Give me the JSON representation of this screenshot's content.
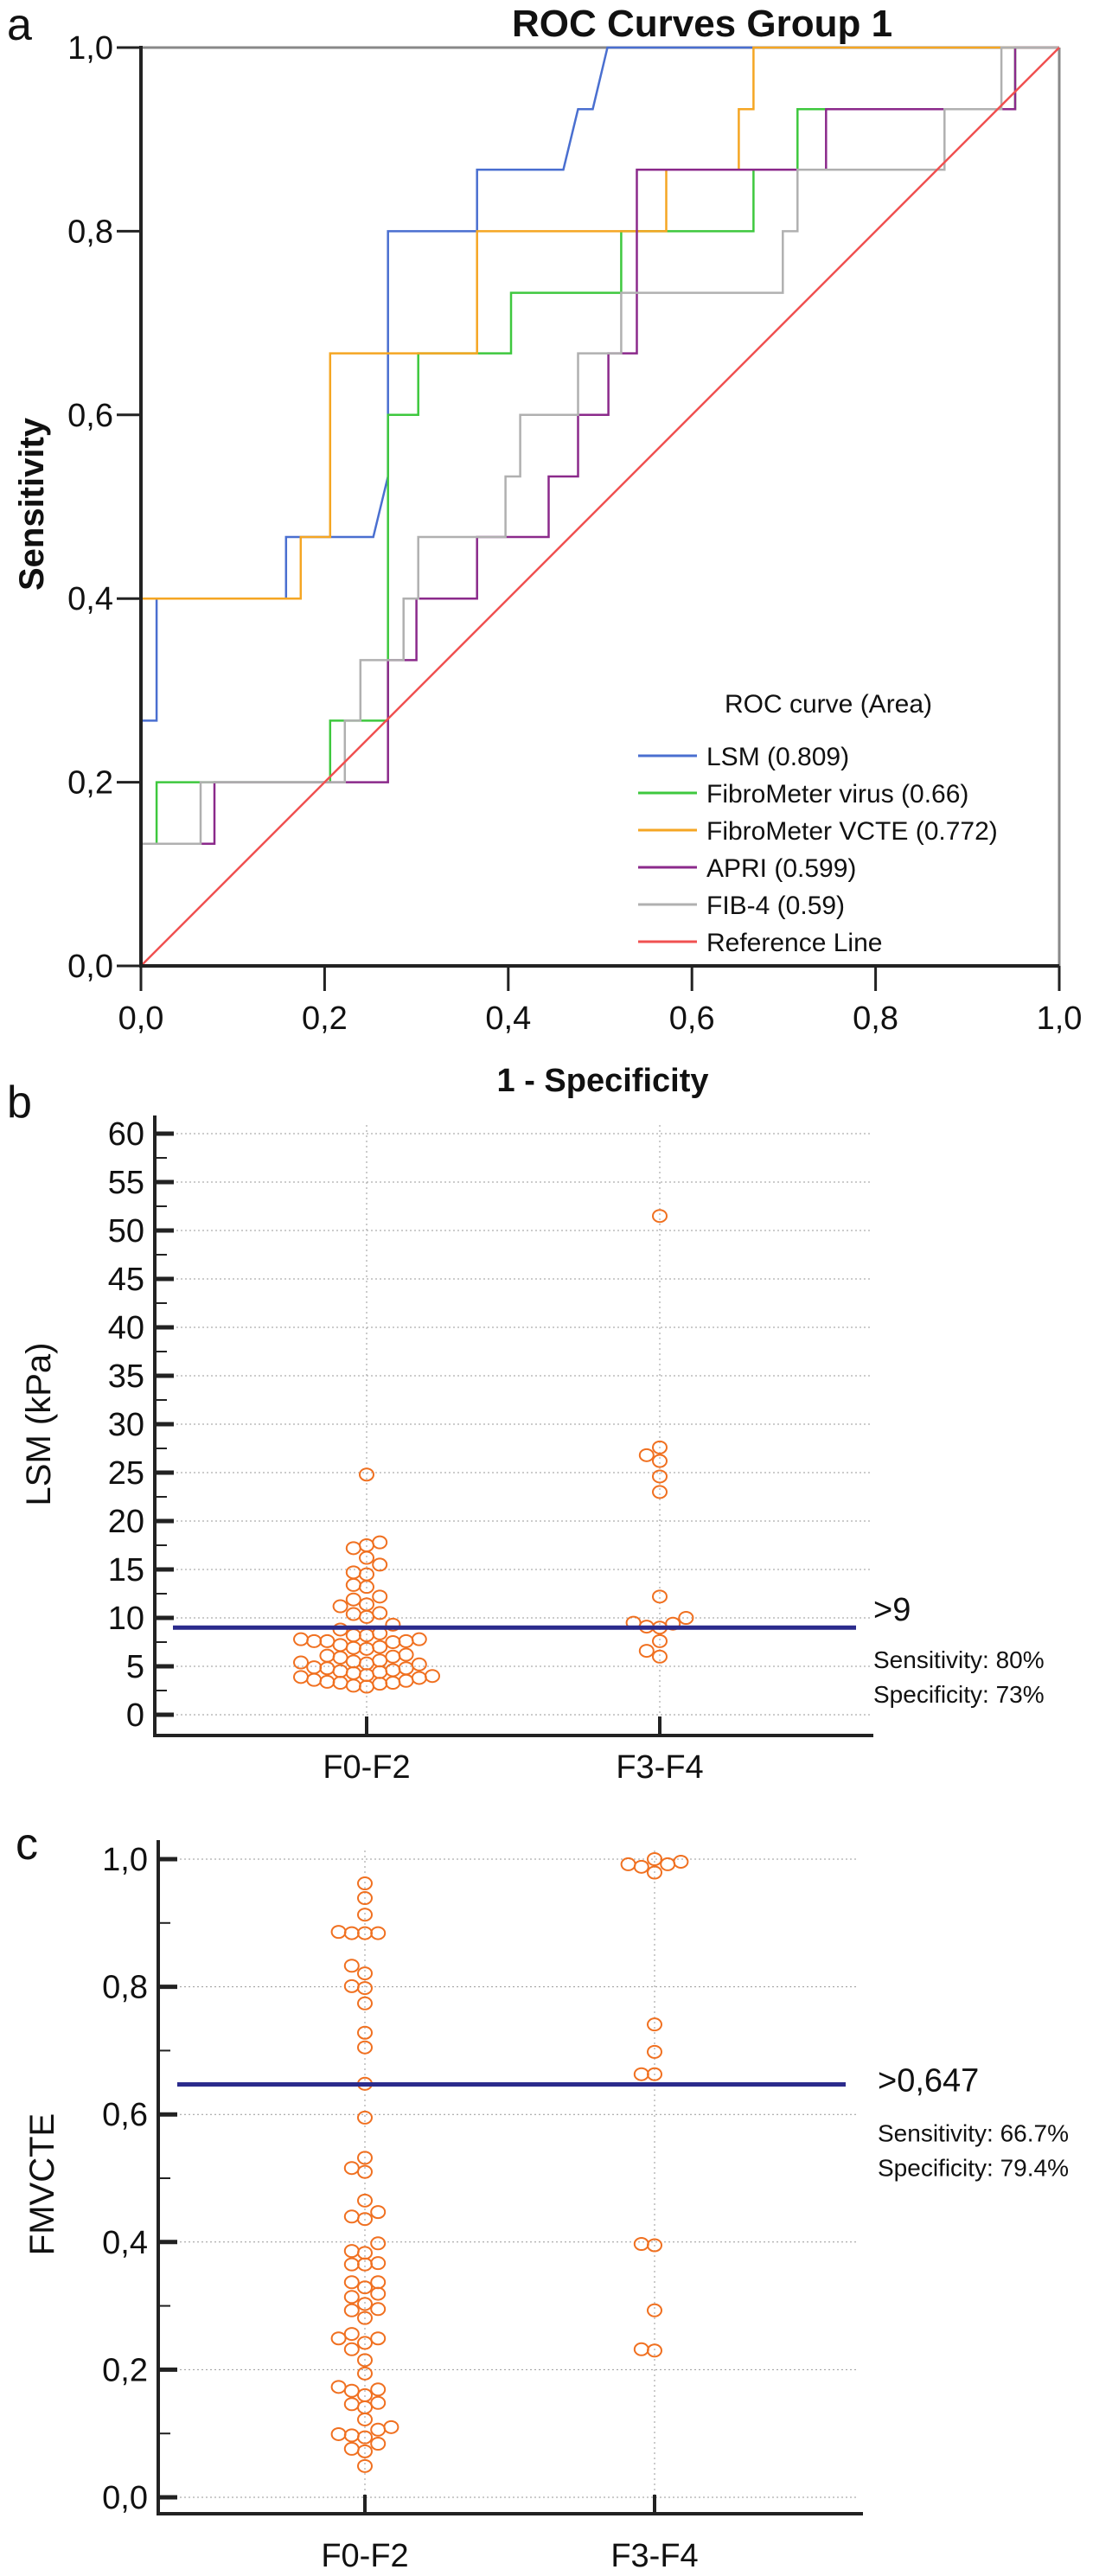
{
  "chart_data": [
    {
      "panel_label": "a",
      "type": "line",
      "title": "ROC Curves Group 1",
      "xlabel": "1 - Specificity",
      "ylabel": "Sensitivity",
      "xlim": [
        0,
        1
      ],
      "ylim": [
        0,
        1
      ],
      "xticks": [
        "0,0",
        "0,2",
        "0,4",
        "0,6",
        "0,8",
        "1,0"
      ],
      "yticks": [
        "0,0",
        "0,2",
        "0,4",
        "0,6",
        "0,8",
        "1,0"
      ],
      "grid": false,
      "legend_title": "ROC curve (Area)",
      "legend_position": "bottom-right",
      "series": [
        {
          "name": "LSM (0.809)",
          "color": "#4a6fd0",
          "points": [
            [
              0,
              0
            ],
            [
              0,
              0.267
            ],
            [
              0.017,
              0.267
            ],
            [
              0.017,
              0.4
            ],
            [
              0.158,
              0.4
            ],
            [
              0.158,
              0.467
            ],
            [
              0.253,
              0.467
            ],
            [
              0.269,
              0.533
            ],
            [
              0.269,
              0.8
            ],
            [
              0.366,
              0.8
            ],
            [
              0.366,
              0.867
            ],
            [
              0.46,
              0.867
            ],
            [
              0.476,
              0.933
            ],
            [
              0.492,
              0.933
            ],
            [
              0.508,
              1
            ],
            [
              1,
              1
            ]
          ]
        },
        {
          "name": "FibroMeter virus (0.66)",
          "color": "#3ec83e",
          "points": [
            [
              0,
              0
            ],
            [
              0,
              0.133
            ],
            [
              0.017,
              0.133
            ],
            [
              0.017,
              0.2
            ],
            [
              0.206,
              0.2
            ],
            [
              0.206,
              0.267
            ],
            [
              0.269,
              0.267
            ],
            [
              0.269,
              0.6
            ],
            [
              0.302,
              0.6
            ],
            [
              0.302,
              0.667
            ],
            [
              0.403,
              0.667
            ],
            [
              0.403,
              0.733
            ],
            [
              0.523,
              0.733
            ],
            [
              0.523,
              0.8
            ],
            [
              0.667,
              0.8
            ],
            [
              0.667,
              0.867
            ],
            [
              0.715,
              0.867
            ],
            [
              0.715,
              0.933
            ],
            [
              0.952,
              0.933
            ],
            [
              0.952,
              1
            ],
            [
              1,
              1
            ]
          ]
        },
        {
          "name": "FibroMeter VCTE (0.772)",
          "color": "#f5a623",
          "points": [
            [
              0,
              0
            ],
            [
              0,
              0.4
            ],
            [
              0.174,
              0.4
            ],
            [
              0.174,
              0.467
            ],
            [
              0.206,
              0.467
            ],
            [
              0.206,
              0.667
            ],
            [
              0.366,
              0.667
            ],
            [
              0.366,
              0.8
            ],
            [
              0.572,
              0.8
            ],
            [
              0.572,
              0.867
            ],
            [
              0.651,
              0.867
            ],
            [
              0.651,
              0.933
            ],
            [
              0.667,
              0.933
            ],
            [
              0.667,
              1
            ],
            [
              1,
              1
            ]
          ]
        },
        {
          "name": "APRI (0.599)",
          "color": "#8b2a8b",
          "points": [
            [
              0,
              0
            ],
            [
              0,
              0.133
            ],
            [
              0.08,
              0.133
            ],
            [
              0.08,
              0.2
            ],
            [
              0.269,
              0.2
            ],
            [
              0.269,
              0.333
            ],
            [
              0.3,
              0.333
            ],
            [
              0.3,
              0.4
            ],
            [
              0.366,
              0.4
            ],
            [
              0.366,
              0.467
            ],
            [
              0.444,
              0.467
            ],
            [
              0.444,
              0.533
            ],
            [
              0.476,
              0.533
            ],
            [
              0.476,
              0.6
            ],
            [
              0.509,
              0.6
            ],
            [
              0.509,
              0.667
            ],
            [
              0.54,
              0.667
            ],
            [
              0.54,
              0.867
            ],
            [
              0.746,
              0.867
            ],
            [
              0.746,
              0.933
            ],
            [
              0.952,
              0.933
            ],
            [
              0.952,
              1
            ],
            [
              1,
              1
            ]
          ]
        },
        {
          "name": "FIB-4 (0.59)",
          "color": "#b0b0b0",
          "points": [
            [
              0,
              0
            ],
            [
              0,
              0.133
            ],
            [
              0.065,
              0.133
            ],
            [
              0.065,
              0.2
            ],
            [
              0.222,
              0.2
            ],
            [
              0.222,
              0.267
            ],
            [
              0.239,
              0.267
            ],
            [
              0.239,
              0.333
            ],
            [
              0.286,
              0.333
            ],
            [
              0.286,
              0.4
            ],
            [
              0.302,
              0.4
            ],
            [
              0.302,
              0.467
            ],
            [
              0.397,
              0.467
            ],
            [
              0.397,
              0.533
            ],
            [
              0.413,
              0.533
            ],
            [
              0.413,
              0.6
            ],
            [
              0.476,
              0.6
            ],
            [
              0.476,
              0.667
            ],
            [
              0.523,
              0.667
            ],
            [
              0.523,
              0.733
            ],
            [
              0.699,
              0.733
            ],
            [
              0.699,
              0.8
            ],
            [
              0.715,
              0.8
            ],
            [
              0.715,
              0.867
            ],
            [
              0.875,
              0.867
            ],
            [
              0.875,
              0.933
            ],
            [
              0.937,
              0.933
            ],
            [
              0.937,
              1
            ],
            [
              1,
              1
            ]
          ]
        },
        {
          "name": "Reference Line",
          "color": "#f05050",
          "points": [
            [
              0,
              0
            ],
            [
              1,
              1
            ]
          ]
        }
      ]
    },
    {
      "panel_label": "b",
      "type": "scatter",
      "ylabel": "LSM (kPa)",
      "ylim": [
        0,
        60
      ],
      "yticks": [
        "0",
        "5",
        "10",
        "15",
        "20",
        "25",
        "30",
        "35",
        "40",
        "45",
        "50",
        "55",
        "60"
      ],
      "grid": true,
      "categories": [
        "F0-F2",
        "F3-F4"
      ],
      "marker_color": "#f07020",
      "cutoff": {
        "value": 9,
        "color": "#2b2b8c",
        "label": ">9",
        "sensitivity": "Sensitivity: 80%",
        "specificity": "Specificity: 73%"
      },
      "series": [
        {
          "category": "F0-F2",
          "values": [
            24.8,
            17.8,
            17.5,
            17.2,
            16.2,
            15.5,
            14.7,
            14.5,
            13.4,
            13.2,
            12.2,
            11.9,
            11.4,
            11.2,
            10.5,
            10.4,
            10.1,
            9.3,
            8.8,
            8.4,
            8.2,
            8.2,
            7.8,
            7.8,
            7.6,
            7.6,
            7.6,
            7.5,
            7.2,
            7.0,
            6.9,
            6.8,
            6.2,
            6.1,
            6.0,
            5.9,
            5.6,
            5.5,
            5.4,
            5.3,
            5.2,
            4.9,
            4.8,
            4.8,
            4.6,
            4.5,
            4.4,
            4.3,
            4.1,
            4.0,
            3.9,
            3.8,
            3.6,
            3.5,
            3.4,
            3.3,
            3.3,
            3.2,
            3.0,
            2.9
          ]
        },
        {
          "category": "F3-F4",
          "values": [
            51.5,
            27.6,
            26.8,
            26.2,
            24.6,
            23.0,
            12.2,
            10.0,
            9.5,
            9.4,
            9.1,
            9.0,
            7.6,
            6.6,
            6.0
          ]
        }
      ]
    },
    {
      "panel_label": "c",
      "type": "scatter",
      "ylabel": "FMVCTE",
      "ylim": [
        0,
        1
      ],
      "yticks": [
        "0,0",
        "0,2",
        "0,4",
        "0,6",
        "0,8",
        "1,0"
      ],
      "grid": true,
      "categories": [
        "F0-F2",
        "F3-F4"
      ],
      "marker_color": "#f07020",
      "cutoff": {
        "value": 0.647,
        "color": "#2b2b8c",
        "label": ">0,647",
        "sensitivity": "Sensitivity:  66.7%",
        "specificity": "Specificity:  79.4%"
      },
      "series": [
        {
          "category": "F0-F2",
          "values": [
            0.962,
            0.939,
            0.913,
            0.886,
            0.884,
            0.884,
            0.884,
            0.833,
            0.821,
            0.801,
            0.798,
            0.774,
            0.728,
            0.705,
            0.648,
            0.595,
            0.532,
            0.516,
            0.51,
            0.465,
            0.447,
            0.44,
            0.436,
            0.398,
            0.386,
            0.383,
            0.367,
            0.365,
            0.365,
            0.337,
            0.337,
            0.329,
            0.319,
            0.314,
            0.303,
            0.295,
            0.293,
            0.281,
            0.256,
            0.249,
            0.249,
            0.242,
            0.232,
            0.215,
            0.194,
            0.173,
            0.169,
            0.167,
            0.16,
            0.148,
            0.146,
            0.141,
            0.122,
            0.11,
            0.106,
            0.099,
            0.097,
            0.094,
            0.084,
            0.076,
            0.072,
            0.049
          ]
        },
        {
          "category": "F3-F4",
          "values": [
            1.0,
            0.996,
            0.992,
            0.992,
            0.988,
            0.979,
            0.741,
            0.698,
            0.663,
            0.663,
            0.397,
            0.395,
            0.293,
            0.232,
            0.23
          ]
        }
      ]
    }
  ]
}
